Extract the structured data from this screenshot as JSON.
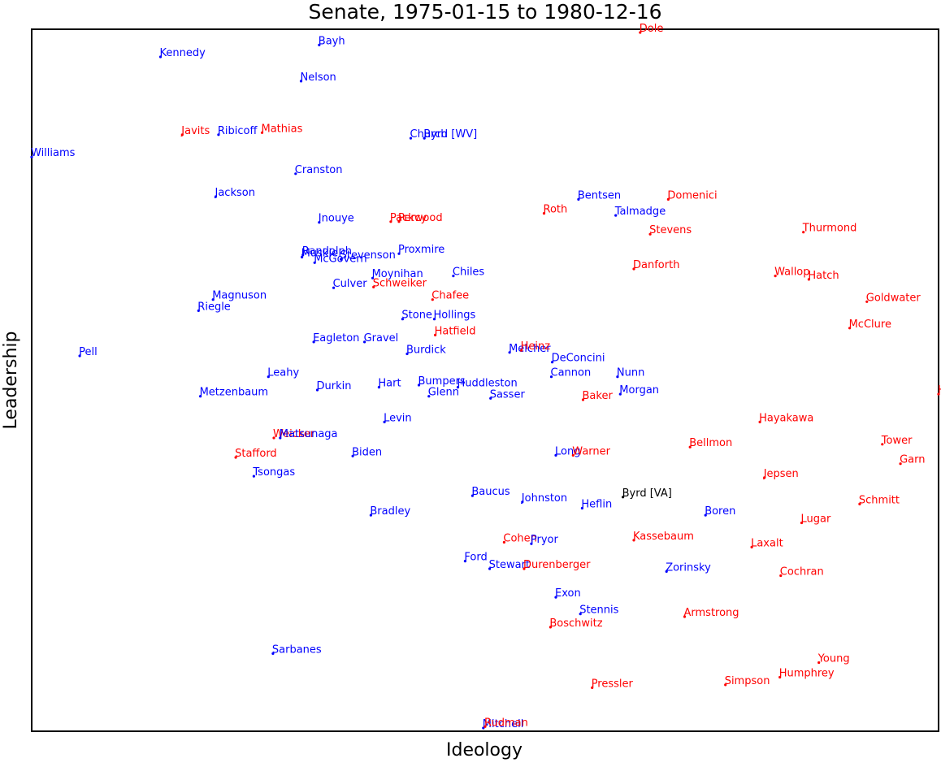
{
  "chart_data": {
    "type": "scatter",
    "title": "Senate, 1975-01-15 to 1980-12-16",
    "xlabel": "Ideology",
    "ylabel": "Leadership",
    "xlim": [
      0,
      1
    ],
    "ylim": [
      0,
      1
    ],
    "grid": false,
    "ticks": false,
    "colors": {
      "D": "#0000ff",
      "R": "#ff0000",
      "I": "#000000"
    },
    "points": [
      {
        "name": "Dole",
        "party": "R",
        "x": 0.671,
        "y": 1.0
      },
      {
        "name": "Bayh",
        "party": "D",
        "x": 0.317,
        "y": 0.982
      },
      {
        "name": "Kennedy",
        "party": "D",
        "x": 0.142,
        "y": 0.965
      },
      {
        "name": "Nelson",
        "party": "D",
        "x": 0.297,
        "y": 0.93
      },
      {
        "name": "Javits",
        "party": "R",
        "x": 0.166,
        "y": 0.853
      },
      {
        "name": "Ribicoff",
        "party": "D",
        "x": 0.206,
        "y": 0.853
      },
      {
        "name": "Mathias",
        "party": "R",
        "x": 0.254,
        "y": 0.856
      },
      {
        "name": "Church",
        "party": "D",
        "x": 0.418,
        "y": 0.848
      },
      {
        "name": "Byrd [WV]",
        "party": "D",
        "x": 0.433,
        "y": 0.848
      },
      {
        "name": "Williams",
        "party": "D",
        "x": 0.0,
        "y": 0.821
      },
      {
        "name": "Cranston",
        "party": "D",
        "x": 0.291,
        "y": 0.797
      },
      {
        "name": "Jackson",
        "party": "D",
        "x": 0.203,
        "y": 0.764
      },
      {
        "name": "Bentsen",
        "party": "D",
        "x": 0.603,
        "y": 0.76
      },
      {
        "name": "Domenici",
        "party": "R",
        "x": 0.702,
        "y": 0.76
      },
      {
        "name": "Roth",
        "party": "R",
        "x": 0.565,
        "y": 0.74
      },
      {
        "name": "Talmadge",
        "party": "D",
        "x": 0.644,
        "y": 0.737
      },
      {
        "name": "Inouye",
        "party": "D",
        "x": 0.317,
        "y": 0.727
      },
      {
        "name": "Packwood",
        "party": "R",
        "x": 0.396,
        "y": 0.728
      },
      {
        "name": "Percy",
        "party": "R",
        "x": 0.405,
        "y": 0.728
      },
      {
        "name": "Stevens",
        "party": "R",
        "x": 0.682,
        "y": 0.71
      },
      {
        "name": "Thurmond",
        "party": "R",
        "x": 0.851,
        "y": 0.713
      },
      {
        "name": "Proxmire",
        "party": "D",
        "x": 0.405,
        "y": 0.682
      },
      {
        "name": "Muskie",
        "party": "D",
        "x": 0.298,
        "y": 0.677
      },
      {
        "name": "Randolph",
        "party": "D",
        "x": 0.299,
        "y": 0.68
      },
      {
        "name": "Stevenson",
        "party": "D",
        "x": 0.341,
        "y": 0.674
      },
      {
        "name": "McGovern",
        "party": "D",
        "x": 0.312,
        "y": 0.669
      },
      {
        "name": "Danforth",
        "party": "R",
        "x": 0.664,
        "y": 0.66
      },
      {
        "name": "Chiles",
        "party": "D",
        "x": 0.465,
        "y": 0.65
      },
      {
        "name": "Moynihan",
        "party": "D",
        "x": 0.376,
        "y": 0.647
      },
      {
        "name": "Wallop",
        "party": "R",
        "x": 0.82,
        "y": 0.65
      },
      {
        "name": "Hatch",
        "party": "R",
        "x": 0.857,
        "y": 0.645
      },
      {
        "name": "Culver",
        "party": "D",
        "x": 0.333,
        "y": 0.633
      },
      {
        "name": "Schweiker",
        "party": "R",
        "x": 0.377,
        "y": 0.634
      },
      {
        "name": "Chafee",
        "party": "R",
        "x": 0.442,
        "y": 0.616
      },
      {
        "name": "Magnuson",
        "party": "D",
        "x": 0.2,
        "y": 0.616
      },
      {
        "name": "Goldwater",
        "party": "R",
        "x": 0.921,
        "y": 0.613
      },
      {
        "name": "Riegle",
        "party": "D",
        "x": 0.184,
        "y": 0.6
      },
      {
        "name": "Stone",
        "party": "D",
        "x": 0.409,
        "y": 0.588
      },
      {
        "name": "Hollings",
        "party": "D",
        "x": 0.444,
        "y": 0.588
      },
      {
        "name": "McClure",
        "party": "R",
        "x": 0.902,
        "y": 0.575
      },
      {
        "name": "Hatfield",
        "party": "R",
        "x": 0.445,
        "y": 0.565
      },
      {
        "name": "Eagleton",
        "party": "D",
        "x": 0.311,
        "y": 0.555
      },
      {
        "name": "Gravel",
        "party": "D",
        "x": 0.367,
        "y": 0.555
      },
      {
        "name": "Pell",
        "party": "D",
        "x": 0.053,
        "y": 0.535
      },
      {
        "name": "Burdick",
        "party": "D",
        "x": 0.414,
        "y": 0.538
      },
      {
        "name": "Melcher",
        "party": "D",
        "x": 0.527,
        "y": 0.54
      },
      {
        "name": "Heinz",
        "party": "R",
        "x": 0.54,
        "y": 0.543
      },
      {
        "name": "DeConcini",
        "party": "D",
        "x": 0.574,
        "y": 0.526
      },
      {
        "name": "Leahy",
        "party": "D",
        "x": 0.261,
        "y": 0.505
      },
      {
        "name": "Cannon",
        "party": "D",
        "x": 0.573,
        "y": 0.505
      },
      {
        "name": "Nunn",
        "party": "D",
        "x": 0.646,
        "y": 0.505
      },
      {
        "name": "Hart",
        "party": "D",
        "x": 0.383,
        "y": 0.49
      },
      {
        "name": "Bumpers",
        "party": "D",
        "x": 0.427,
        "y": 0.493
      },
      {
        "name": "Huddleston",
        "party": "D",
        "x": 0.47,
        "y": 0.49
      },
      {
        "name": "Durkin",
        "party": "D",
        "x": 0.315,
        "y": 0.486
      },
      {
        "name": "Morgan",
        "party": "D",
        "x": 0.649,
        "y": 0.48
      },
      {
        "name": "Metzenbaum",
        "party": "D",
        "x": 0.186,
        "y": 0.477
      },
      {
        "name": "Glenn",
        "party": "D",
        "x": 0.438,
        "y": 0.477
      },
      {
        "name": "Sasser",
        "party": "D",
        "x": 0.506,
        "y": 0.474
      },
      {
        "name": "Baker",
        "party": "R",
        "x": 0.608,
        "y": 0.472
      },
      {
        "name": "Hayakawa",
        "party": "R",
        "x": 0.803,
        "y": 0.44
      },
      {
        "name": "Levin",
        "party": "D",
        "x": 0.389,
        "y": 0.44
      },
      {
        "name": "Tower",
        "party": "R",
        "x": 0.938,
        "y": 0.408
      },
      {
        "name": "Weicker",
        "party": "R",
        "x": 0.267,
        "y": 0.417
      },
      {
        "name": "Matsunaga",
        "party": "D",
        "x": 0.274,
        "y": 0.417
      },
      {
        "name": "Bellmon",
        "party": "R",
        "x": 0.726,
        "y": 0.404
      },
      {
        "name": "Stafford",
        "party": "R",
        "x": 0.225,
        "y": 0.389
      },
      {
        "name": "Biden",
        "party": "D",
        "x": 0.354,
        "y": 0.391
      },
      {
        "name": "Long",
        "party": "D",
        "x": 0.578,
        "y": 0.392
      },
      {
        "name": "Warner",
        "party": "R",
        "x": 0.597,
        "y": 0.392
      },
      {
        "name": "Garn",
        "party": "R",
        "x": 0.958,
        "y": 0.38
      },
      {
        "name": "Tsongas",
        "party": "D",
        "x": 0.245,
        "y": 0.362
      },
      {
        "name": "Jepsen",
        "party": "R",
        "x": 0.808,
        "y": 0.36
      },
      {
        "name": "Baucus",
        "party": "D",
        "x": 0.486,
        "y": 0.334
      },
      {
        "name": "Johnston",
        "party": "D",
        "x": 0.541,
        "y": 0.325
      },
      {
        "name": "Byrd [VA]",
        "party": "I",
        "x": 0.652,
        "y": 0.332
      },
      {
        "name": "Schmitt",
        "party": "R",
        "x": 0.913,
        "y": 0.322
      },
      {
        "name": "Heflin",
        "party": "D",
        "x": 0.607,
        "y": 0.316
      },
      {
        "name": "Bradley",
        "party": "D",
        "x": 0.374,
        "y": 0.306
      },
      {
        "name": "Boren",
        "party": "D",
        "x": 0.743,
        "y": 0.306
      },
      {
        "name": "Lugar",
        "party": "R",
        "x": 0.849,
        "y": 0.295
      },
      {
        "name": "Cohen",
        "party": "R",
        "x": 0.521,
        "y": 0.267
      },
      {
        "name": "Pryor",
        "party": "D",
        "x": 0.551,
        "y": 0.265
      },
      {
        "name": "Kassebaum",
        "party": "R",
        "x": 0.664,
        "y": 0.27
      },
      {
        "name": "Laxalt",
        "party": "R",
        "x": 0.794,
        "y": 0.26
      },
      {
        "name": "Ford",
        "party": "D",
        "x": 0.478,
        "y": 0.24
      },
      {
        "name": "Stewart",
        "party": "D",
        "x": 0.505,
        "y": 0.229
      },
      {
        "name": "Durenberger",
        "party": "R",
        "x": 0.543,
        "y": 0.229
      },
      {
        "name": "Zorinsky",
        "party": "D",
        "x": 0.7,
        "y": 0.225
      },
      {
        "name": "Cochran",
        "party": "R",
        "x": 0.826,
        "y": 0.219
      },
      {
        "name": "Exon",
        "party": "D",
        "x": 0.578,
        "y": 0.188
      },
      {
        "name": "Stennis",
        "party": "D",
        "x": 0.605,
        "y": 0.164
      },
      {
        "name": "Armstrong",
        "party": "R",
        "x": 0.72,
        "y": 0.16
      },
      {
        "name": "Boschwitz",
        "party": "R",
        "x": 0.572,
        "y": 0.145
      },
      {
        "name": "Sarbanes",
        "party": "D",
        "x": 0.266,
        "y": 0.107
      },
      {
        "name": "Young",
        "party": "R",
        "x": 0.868,
        "y": 0.094
      },
      {
        "name": "Humphrey",
        "party": "R",
        "x": 0.825,
        "y": 0.073
      },
      {
        "name": "Simpson",
        "party": "R",
        "x": 0.765,
        "y": 0.062
      },
      {
        "name": "Pressler",
        "party": "R",
        "x": 0.618,
        "y": 0.058
      },
      {
        "name": "Mitchell",
        "party": "D",
        "x": 0.498,
        "y": 0.0
      },
      {
        "name": "Rudman",
        "party": "R",
        "x": 0.5,
        "y": 0.002
      },
      {
        "name": "Helms",
        "party": "R",
        "x": 1.0,
        "y": 0.48
      }
    ]
  }
}
